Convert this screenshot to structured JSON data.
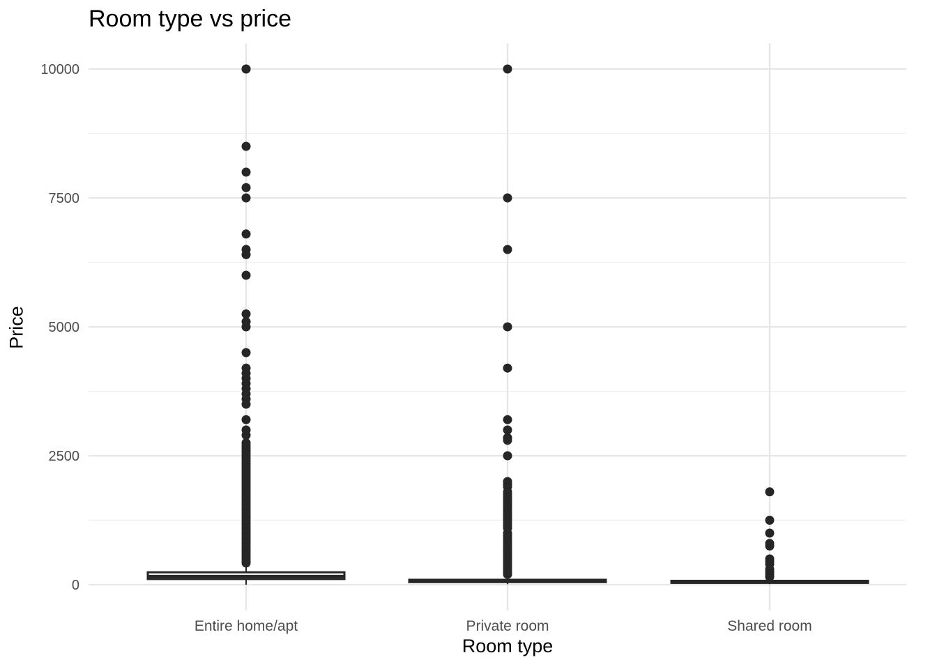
{
  "chart_data": {
    "type": "boxplot",
    "title": "Room type vs price",
    "xlabel": "Room type",
    "ylabel": "Price",
    "ylim": [
      -450,
      10500
    ],
    "y_ticks": [
      0,
      2500,
      5000,
      7500,
      10000
    ],
    "grid": true,
    "colors": {
      "grid_major": "#e6e6e6",
      "grid_minor": "#f0f0f0",
      "marks": "#262626",
      "box_fill": "#ffffff",
      "tick_text": "#4d4d4d"
    },
    "categories": [
      "Entire home/apt",
      "Private room",
      "Shared room"
    ],
    "boxes": [
      {
        "category": "Entire home/apt",
        "min": 0,
        "q1": 110,
        "median": 160,
        "q3": 240,
        "max": 400,
        "outliers": [
          10000,
          10000,
          8500,
          8000,
          7700,
          7500,
          6800,
          6500,
          6400,
          6000,
          5250,
          5100,
          5000,
          4500,
          4200,
          4100,
          4000,
          3900,
          3800,
          3700,
          3600,
          3500,
          3200,
          3000,
          2900,
          2750,
          2700,
          2650,
          2600,
          2550,
          2500,
          2450,
          2400,
          2350,
          2300,
          2250,
          2200,
          2150,
          2100,
          2050,
          2000,
          1950,
          1900,
          1850,
          1800,
          1750,
          1700,
          1650,
          1600,
          1550,
          1500,
          1450,
          1400,
          1350,
          1300,
          1250,
          1200,
          1150,
          1100,
          1050,
          1000,
          950,
          900,
          850,
          800,
          750,
          700,
          650,
          600,
          550,
          500,
          450,
          420
        ]
      },
      {
        "category": "Private room",
        "min": 10,
        "q1": 50,
        "median": 70,
        "q3": 95,
        "max": 160,
        "outliers": [
          10000,
          7500,
          6500,
          5000,
          4200,
          3200,
          3000,
          2850,
          2800,
          2500,
          2000,
          1950,
          1900,
          1800,
          1750,
          1700,
          1650,
          1600,
          1550,
          1500,
          1450,
          1400,
          1350,
          1300,
          1250,
          1200,
          1150,
          1100,
          1000,
          950,
          900,
          850,
          800,
          750,
          700,
          650,
          600,
          550,
          500,
          450,
          400,
          350,
          300,
          250,
          200
        ]
      },
      {
        "category": "Shared room",
        "min": 10,
        "q1": 35,
        "median": 50,
        "q3": 75,
        "max": 120,
        "outliers": [
          1800,
          1250,
          1000,
          800,
          750,
          500,
          450,
          400,
          300,
          250,
          200,
          150
        ]
      }
    ]
  }
}
